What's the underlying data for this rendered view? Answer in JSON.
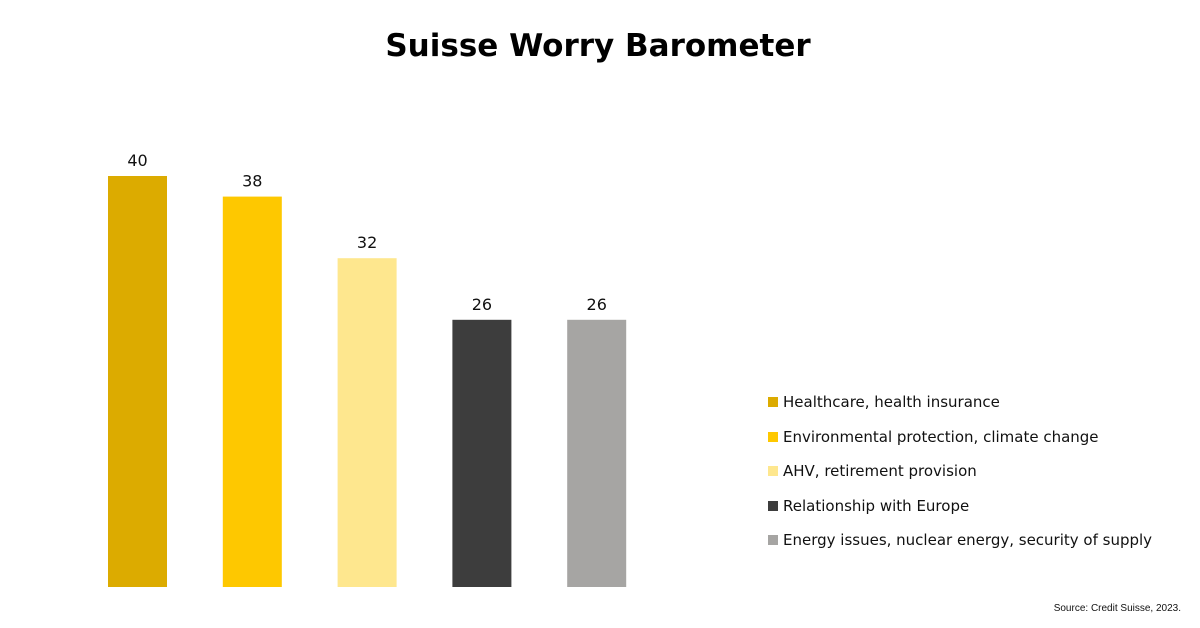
{
  "chart_data": {
    "type": "bar",
    "title": "Suisse Worry Barometer",
    "categories": [
      "Healthcare, health insurance",
      "Environmental protection, climate change",
      "AHV, retirement provision",
      "Relationship with Europe",
      "Energy issues, nuclear energy, security of supply"
    ],
    "values": [
      40,
      38,
      32,
      26,
      26
    ],
    "colors": [
      "#dcab00",
      "#fec800",
      "#fee78e",
      "#3d3d3d",
      "#a6a5a3"
    ],
    "ylim": [
      0,
      40
    ],
    "xlabel": "",
    "ylabel": "",
    "grid": false,
    "legend_position": "right"
  },
  "source": "Source: Credit Suisse, 2023."
}
